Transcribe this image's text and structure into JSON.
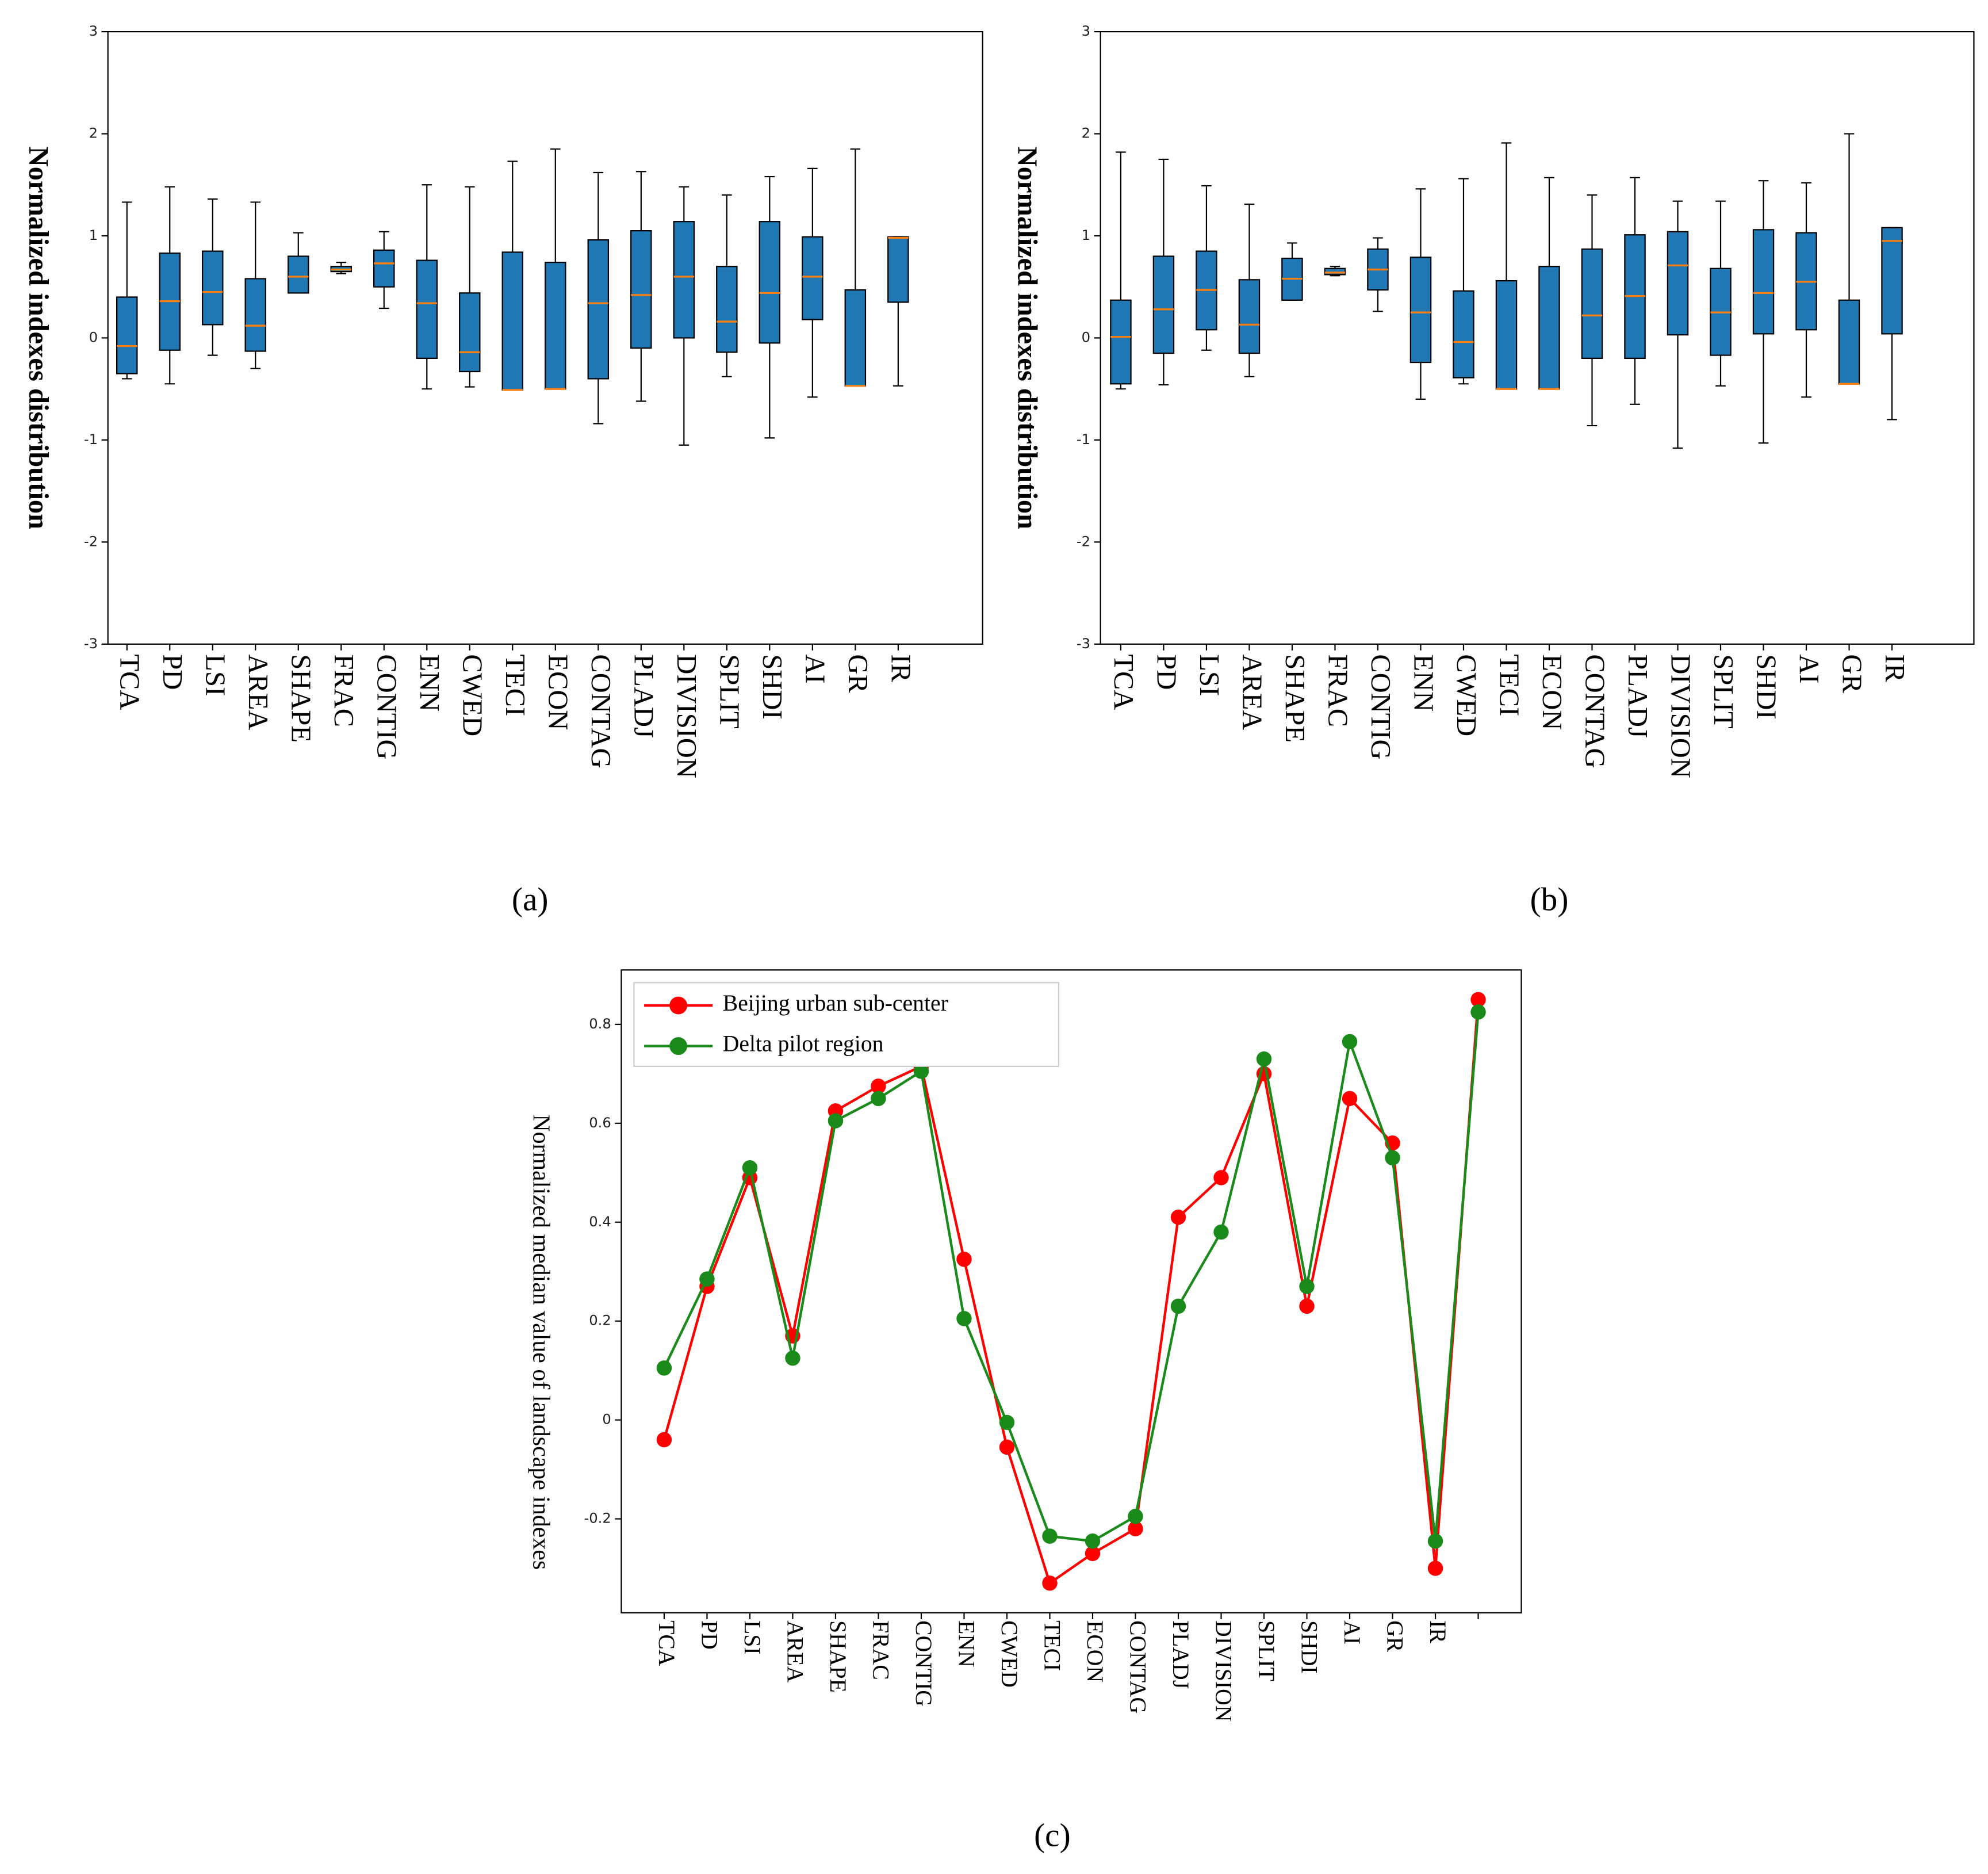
{
  "chart_data": [
    {
      "type": "box",
      "caption": "(a)",
      "y_label": "Normalized indexes distribution",
      "categories": [
        "TCA",
        "PD",
        "LSI",
        "AREA",
        "SHAPE",
        "FRAC",
        "CONTIG",
        "ENN",
        "CWED",
        "TECI",
        "ECON",
        "CONTAG",
        "PLADJ",
        "DIVISION",
        "SPLIT",
        "SHDI",
        "AI",
        "GR",
        "IR"
      ],
      "whislo": [
        -0.4,
        -0.45,
        -0.17,
        -0.3,
        0.44,
        0.63,
        0.29,
        -0.5,
        -0.48,
        -0.51,
        -0.5,
        -0.84,
        -0.62,
        -1.05,
        -0.38,
        -0.98,
        -0.58,
        -0.47,
        -0.47
      ],
      "q1": [
        -0.35,
        -0.12,
        0.13,
        -0.13,
        0.44,
        0.65,
        0.5,
        -0.2,
        -0.33,
        -0.51,
        -0.5,
        -0.4,
        -0.1,
        0.0,
        -0.14,
        -0.05,
        0.18,
        -0.47,
        0.35
      ],
      "med": [
        -0.08,
        0.36,
        0.45,
        0.12,
        0.6,
        0.67,
        0.73,
        0.34,
        -0.14,
        -0.51,
        -0.5,
        0.34,
        0.42,
        0.6,
        0.16,
        0.44,
        0.6,
        -0.47,
        0.98
      ],
      "q3": [
        0.4,
        0.83,
        0.85,
        0.58,
        0.8,
        0.7,
        0.86,
        0.76,
        0.44,
        0.84,
        0.74,
        0.96,
        1.05,
        1.14,
        0.7,
        1.14,
        0.99,
        0.47,
        0.99
      ],
      "whishi": [
        1.33,
        1.48,
        1.36,
        1.33,
        1.03,
        0.74,
        1.04,
        1.5,
        1.48,
        1.73,
        1.85,
        1.62,
        1.63,
        1.48,
        1.4,
        1.58,
        1.66,
        1.85,
        0.99
      ],
      "color": "#1f77b4",
      "median_color": "#ff7f0e",
      "ylim": [
        -3,
        3
      ],
      "yticks": [
        -3,
        -2,
        -1,
        0,
        1,
        2,
        3
      ]
    },
    {
      "type": "box",
      "caption": "(b)",
      "y_label": "Normalized indexes distribution",
      "categories": [
        "TCA",
        "PD",
        "LSI",
        "AREA",
        "SHAPE",
        "FRAC",
        "CONTIG",
        "ENN",
        "CWED",
        "TECI",
        "ECON",
        "CONTAG",
        "PLADJ",
        "DIVISION",
        "SPLIT",
        "SHDI",
        "AI",
        "GR",
        "IR"
      ],
      "whislo": [
        -0.5,
        -0.46,
        -0.12,
        -0.38,
        0.37,
        0.61,
        0.26,
        -0.6,
        -0.45,
        -0.5,
        -0.5,
        -0.86,
        -0.65,
        -1.08,
        -0.47,
        -1.03,
        -0.58,
        -0.45,
        -0.8
      ],
      "q1": [
        -0.45,
        -0.15,
        0.08,
        -0.15,
        0.37,
        0.62,
        0.47,
        -0.24,
        -0.39,
        -0.5,
        -0.5,
        -0.2,
        -0.2,
        0.03,
        -0.17,
        0.04,
        0.08,
        -0.45,
        0.04
      ],
      "med": [
        0.01,
        0.28,
        0.47,
        0.13,
        0.58,
        0.64,
        0.67,
        0.25,
        -0.04,
        -0.5,
        -0.5,
        0.22,
        0.41,
        0.71,
        0.25,
        0.44,
        0.55,
        -0.45,
        0.95
      ],
      "q3": [
        0.37,
        0.8,
        0.85,
        0.57,
        0.78,
        0.68,
        0.87,
        0.79,
        0.46,
        0.56,
        0.7,
        0.87,
        1.01,
        1.04,
        0.68,
        1.06,
        1.03,
        0.37,
        1.08
      ],
      "whishi": [
        1.82,
        1.75,
        1.49,
        1.31,
        0.93,
        0.7,
        0.98,
        1.46,
        1.56,
        1.91,
        1.57,
        1.4,
        1.57,
        1.34,
        1.34,
        1.54,
        1.52,
        2.0,
        1.08
      ],
      "color": "#1f77b4",
      "median_color": "#ff7f0e",
      "ylim": [
        -3,
        3
      ],
      "yticks": [
        -3,
        -2,
        -1,
        0,
        1,
        2,
        3
      ]
    },
    {
      "type": "line",
      "caption": "(c)",
      "y_label": "Normalized median value of landscape indexes",
      "categories": [
        "TCA",
        "PD",
        "LSI",
        "AREA",
        "SHAPE",
        "FRAC",
        "CONTIG",
        "ENN",
        "CWED",
        "TECI",
        "ECON",
        "CONTAG",
        "PLADJ",
        "DIVISION",
        "SPLIT",
        "SHDI",
        "AI",
        "GR",
        "IR",
        null
      ],
      "series": [
        {
          "name": "Beijing urban sub-center",
          "color": "#ff0000",
          "values": [
            -0.04,
            0.27,
            0.49,
            0.17,
            0.625,
            0.675,
            0.715,
            0.325,
            -0.055,
            -0.33,
            -0.27,
            -0.22,
            0.41,
            0.49,
            0.7,
            0.23,
            0.65,
            0.56,
            -0.3,
            0.85
          ]
        },
        {
          "name": "Delta pilot region",
          "color": "#1a8a1a",
          "values": [
            0.105,
            0.285,
            0.51,
            0.125,
            0.605,
            0.65,
            0.705,
            0.205,
            -0.005,
            -0.235,
            -0.245,
            -0.195,
            0.23,
            0.38,
            0.73,
            0.27,
            0.765,
            0.53,
            -0.245,
            0.825
          ]
        }
      ],
      "legend": "upper left",
      "ylim": [
        -0.39,
        0.91
      ],
      "yticks": [
        -0.2,
        0.0,
        0.2,
        0.4,
        0.6,
        0.8
      ]
    }
  ]
}
